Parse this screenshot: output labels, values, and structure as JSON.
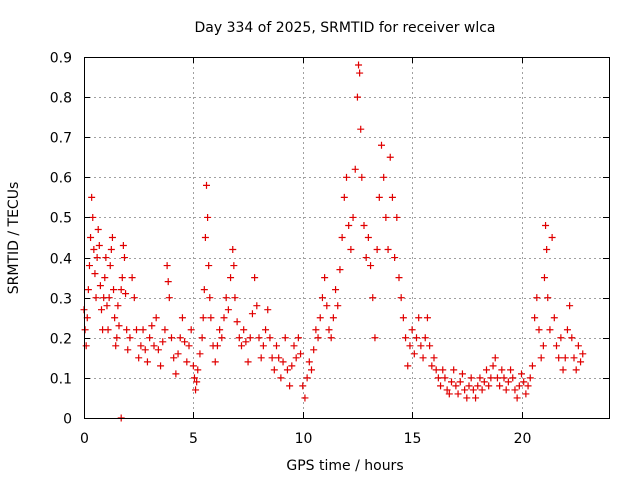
{
  "chart_data": {
    "type": "scatter",
    "title": "Day 334 of 2025, SRMTID for receiver wlca",
    "xlabel": "GPS time / hours",
    "ylabel": "SRMTID / TECUs",
    "xlim": [
      0,
      24
    ],
    "ylim": [
      0,
      0.9
    ],
    "x_ticks": [
      0,
      5,
      10,
      15,
      20
    ],
    "x_tick_labels": [
      "0",
      "5",
      "10",
      "15",
      "20"
    ],
    "y_ticks": [
      0,
      0.1,
      0.2,
      0.3,
      0.4,
      0.5,
      0.6,
      0.7,
      0.8,
      0.9
    ],
    "y_tick_labels": [
      "0",
      "0.1",
      "0.2",
      "0.3",
      "0.4",
      "0.5",
      "0.6",
      "0.7",
      "0.8",
      "0.9"
    ],
    "grid": true,
    "marker": "+",
    "color": "#e00000",
    "series": [
      {
        "name": "SRMTID",
        "points": [
          [
            0.0,
            0.27
          ],
          [
            0.05,
            0.22
          ],
          [
            0.1,
            0.18
          ],
          [
            0.15,
            0.25
          ],
          [
            0.2,
            0.32
          ],
          [
            0.25,
            0.38
          ],
          [
            0.3,
            0.45
          ],
          [
            0.35,
            0.55
          ],
          [
            0.4,
            0.5
          ],
          [
            0.45,
            0.42
          ],
          [
            0.5,
            0.36
          ],
          [
            0.55,
            0.3
          ],
          [
            0.6,
            0.4
          ],
          [
            0.65,
            0.47
          ],
          [
            0.7,
            0.43
          ],
          [
            0.75,
            0.33
          ],
          [
            0.8,
            0.27
          ],
          [
            0.85,
            0.22
          ],
          [
            0.9,
            0.3
          ],
          [
            0.95,
            0.35
          ],
          [
            1.0,
            0.4
          ],
          [
            1.05,
            0.28
          ],
          [
            1.1,
            0.22
          ],
          [
            1.15,
            0.3
          ],
          [
            1.2,
            0.38
          ],
          [
            1.25,
            0.42
          ],
          [
            1.3,
            0.45
          ],
          [
            1.35,
            0.32
          ],
          [
            1.4,
            0.25
          ],
          [
            1.45,
            0.18
          ],
          [
            1.5,
            0.2
          ],
          [
            1.55,
            0.28
          ],
          [
            1.6,
            0.23
          ],
          [
            1.7,
            0.32
          ],
          [
            1.75,
            0.35
          ],
          [
            1.8,
            0.43
          ],
          [
            1.85,
            0.4
          ],
          [
            1.9,
            0.31
          ],
          [
            1.95,
            0.22
          ],
          [
            2.0,
            0.17
          ],
          [
            2.1,
            0.2
          ],
          [
            2.2,
            0.35
          ],
          [
            2.3,
            0.3
          ],
          [
            2.4,
            0.22
          ],
          [
            2.5,
            0.15
          ],
          [
            2.6,
            0.18
          ],
          [
            2.7,
            0.22
          ],
          [
            2.8,
            0.17
          ],
          [
            2.9,
            0.14
          ],
          [
            3.0,
            0.2
          ],
          [
            3.1,
            0.23
          ],
          [
            3.2,
            0.18
          ],
          [
            3.3,
            0.25
          ],
          [
            3.4,
            0.17
          ],
          [
            3.5,
            0.13
          ],
          [
            3.6,
            0.19
          ],
          [
            3.7,
            0.22
          ],
          [
            3.8,
            0.38
          ],
          [
            3.85,
            0.34
          ],
          [
            3.9,
            0.3
          ],
          [
            4.0,
            0.2
          ],
          [
            4.1,
            0.15
          ],
          [
            4.2,
            0.11
          ],
          [
            4.3,
            0.16
          ],
          [
            4.4,
            0.2
          ],
          [
            4.5,
            0.25
          ],
          [
            4.6,
            0.19
          ],
          [
            4.7,
            0.14
          ],
          [
            4.8,
            0.18
          ],
          [
            4.9,
            0.22
          ],
          [
            5.0,
            0.13
          ],
          [
            5.05,
            0.1
          ],
          [
            5.1,
            0.07
          ],
          [
            5.15,
            0.09
          ],
          [
            5.2,
            0.12
          ],
          [
            5.3,
            0.16
          ],
          [
            5.4,
            0.2
          ],
          [
            5.45,
            0.25
          ],
          [
            5.5,
            0.32
          ],
          [
            5.55,
            0.45
          ],
          [
            5.6,
            0.58
          ],
          [
            5.65,
            0.5
          ],
          [
            5.7,
            0.38
          ],
          [
            5.75,
            0.3
          ],
          [
            5.8,
            0.25
          ],
          [
            5.9,
            0.18
          ],
          [
            6.0,
            0.14
          ],
          [
            6.1,
            0.18
          ],
          [
            6.2,
            0.22
          ],
          [
            6.3,
            0.2
          ],
          [
            6.4,
            0.25
          ],
          [
            6.5,
            0.3
          ],
          [
            6.6,
            0.27
          ],
          [
            6.7,
            0.35
          ],
          [
            6.8,
            0.42
          ],
          [
            6.85,
            0.38
          ],
          [
            6.9,
            0.3
          ],
          [
            7.0,
            0.24
          ],
          [
            7.1,
            0.2
          ],
          [
            7.2,
            0.18
          ],
          [
            7.3,
            0.22
          ],
          [
            7.4,
            0.19
          ],
          [
            7.5,
            0.14
          ],
          [
            7.6,
            0.2
          ],
          [
            7.7,
            0.26
          ],
          [
            7.8,
            0.35
          ],
          [
            7.9,
            0.28
          ],
          [
            8.0,
            0.2
          ],
          [
            8.1,
            0.15
          ],
          [
            8.2,
            0.18
          ],
          [
            8.3,
            0.22
          ],
          [
            8.4,
            0.27
          ],
          [
            8.5,
            0.2
          ],
          [
            8.6,
            0.15
          ],
          [
            8.7,
            0.12
          ],
          [
            8.8,
            0.18
          ],
          [
            8.9,
            0.15
          ],
          [
            9.0,
            0.1
          ],
          [
            9.1,
            0.14
          ],
          [
            9.2,
            0.2
          ],
          [
            9.3,
            0.12
          ],
          [
            9.4,
            0.08
          ],
          [
            9.5,
            0.13
          ],
          [
            9.6,
            0.18
          ],
          [
            9.7,
            0.15
          ],
          [
            9.8,
            0.2
          ],
          [
            9.9,
            0.16
          ],
          [
            10.0,
            0.08
          ],
          [
            10.1,
            0.05
          ],
          [
            10.2,
            0.1
          ],
          [
            10.3,
            0.14
          ],
          [
            10.4,
            0.12
          ],
          [
            10.5,
            0.17
          ],
          [
            10.6,
            0.22
          ],
          [
            10.7,
            0.2
          ],
          [
            10.8,
            0.25
          ],
          [
            10.9,
            0.3
          ],
          [
            11.0,
            0.35
          ],
          [
            11.1,
            0.28
          ],
          [
            11.2,
            0.22
          ],
          [
            11.3,
            0.2
          ],
          [
            11.4,
            0.25
          ],
          [
            11.5,
            0.32
          ],
          [
            11.6,
            0.28
          ],
          [
            11.7,
            0.37
          ],
          [
            11.8,
            0.45
          ],
          [
            11.9,
            0.55
          ],
          [
            12.0,
            0.6
          ],
          [
            12.1,
            0.48
          ],
          [
            12.2,
            0.42
          ],
          [
            12.3,
            0.5
          ],
          [
            12.4,
            0.62
          ],
          [
            12.5,
            0.8
          ],
          [
            12.55,
            0.88
          ],
          [
            12.6,
            0.86
          ],
          [
            12.65,
            0.72
          ],
          [
            12.7,
            0.6
          ],
          [
            12.8,
            0.48
          ],
          [
            12.9,
            0.4
          ],
          [
            13.0,
            0.45
          ],
          [
            13.1,
            0.38
          ],
          [
            13.2,
            0.3
          ],
          [
            13.3,
            0.2
          ],
          [
            13.4,
            0.42
          ],
          [
            13.5,
            0.55
          ],
          [
            13.6,
            0.68
          ],
          [
            13.7,
            0.6
          ],
          [
            13.8,
            0.5
          ],
          [
            13.9,
            0.42
          ],
          [
            14.0,
            0.65
          ],
          [
            14.1,
            0.55
          ],
          [
            14.2,
            0.4
          ],
          [
            14.3,
            0.5
          ],
          [
            14.4,
            0.35
          ],
          [
            14.5,
            0.3
          ],
          [
            14.6,
            0.25
          ],
          [
            14.7,
            0.2
          ],
          [
            14.8,
            0.13
          ],
          [
            14.9,
            0.18
          ],
          [
            15.0,
            0.22
          ],
          [
            15.1,
            0.16
          ],
          [
            15.2,
            0.2
          ],
          [
            15.3,
            0.25
          ],
          [
            15.4,
            0.18
          ],
          [
            15.5,
            0.15
          ],
          [
            15.6,
            0.2
          ],
          [
            15.7,
            0.25
          ],
          [
            15.8,
            0.18
          ],
          [
            15.9,
            0.13
          ],
          [
            16.0,
            0.15
          ],
          [
            16.1,
            0.12
          ],
          [
            16.2,
            0.1
          ],
          [
            16.3,
            0.08
          ],
          [
            16.4,
            0.12
          ],
          [
            16.5,
            0.1
          ],
          [
            16.6,
            0.07
          ],
          [
            16.7,
            0.06
          ],
          [
            16.8,
            0.09
          ],
          [
            16.9,
            0.12
          ],
          [
            17.0,
            0.08
          ],
          [
            17.1,
            0.06
          ],
          [
            17.2,
            0.09
          ],
          [
            17.3,
            0.11
          ],
          [
            17.4,
            0.07
          ],
          [
            17.5,
            0.05
          ],
          [
            17.6,
            0.08
          ],
          [
            17.7,
            0.1
          ],
          [
            17.8,
            0.07
          ],
          [
            17.9,
            0.05
          ],
          [
            18.0,
            0.08
          ],
          [
            18.1,
            0.1
          ],
          [
            18.2,
            0.07
          ],
          [
            18.3,
            0.09
          ],
          [
            18.4,
            0.12
          ],
          [
            18.5,
            0.08
          ],
          [
            18.6,
            0.1
          ],
          [
            18.7,
            0.13
          ],
          [
            18.8,
            0.15
          ],
          [
            18.9,
            0.1
          ],
          [
            19.0,
            0.08
          ],
          [
            19.1,
            0.12
          ],
          [
            19.2,
            0.1
          ],
          [
            19.3,
            0.07
          ],
          [
            19.4,
            0.09
          ],
          [
            19.5,
            0.12
          ],
          [
            19.6,
            0.1
          ],
          [
            19.7,
            0.07
          ],
          [
            19.8,
            0.05
          ],
          [
            19.9,
            0.08
          ],
          [
            20.0,
            0.11
          ],
          [
            20.1,
            0.09
          ],
          [
            20.2,
            0.06
          ],
          [
            20.3,
            0.08
          ],
          [
            20.4,
            0.1
          ],
          [
            20.5,
            0.13
          ],
          [
            20.6,
            0.25
          ],
          [
            20.7,
            0.3
          ],
          [
            20.8,
            0.22
          ],
          [
            20.9,
            0.15
          ],
          [
            21.0,
            0.18
          ],
          [
            21.05,
            0.35
          ],
          [
            21.1,
            0.48
          ],
          [
            21.15,
            0.42
          ],
          [
            21.2,
            0.3
          ],
          [
            21.3,
            0.22
          ],
          [
            21.4,
            0.45
          ],
          [
            21.5,
            0.25
          ],
          [
            21.6,
            0.18
          ],
          [
            21.7,
            0.15
          ],
          [
            21.8,
            0.2
          ],
          [
            21.9,
            0.12
          ],
          [
            22.0,
            0.15
          ],
          [
            22.1,
            0.22
          ],
          [
            22.2,
            0.28
          ],
          [
            22.3,
            0.2
          ],
          [
            22.4,
            0.15
          ],
          [
            22.5,
            0.12
          ],
          [
            22.6,
            0.18
          ],
          [
            22.7,
            0.14
          ],
          [
            22.8,
            0.16
          ],
          [
            1.7,
            0.0
          ]
        ]
      }
    ]
  }
}
